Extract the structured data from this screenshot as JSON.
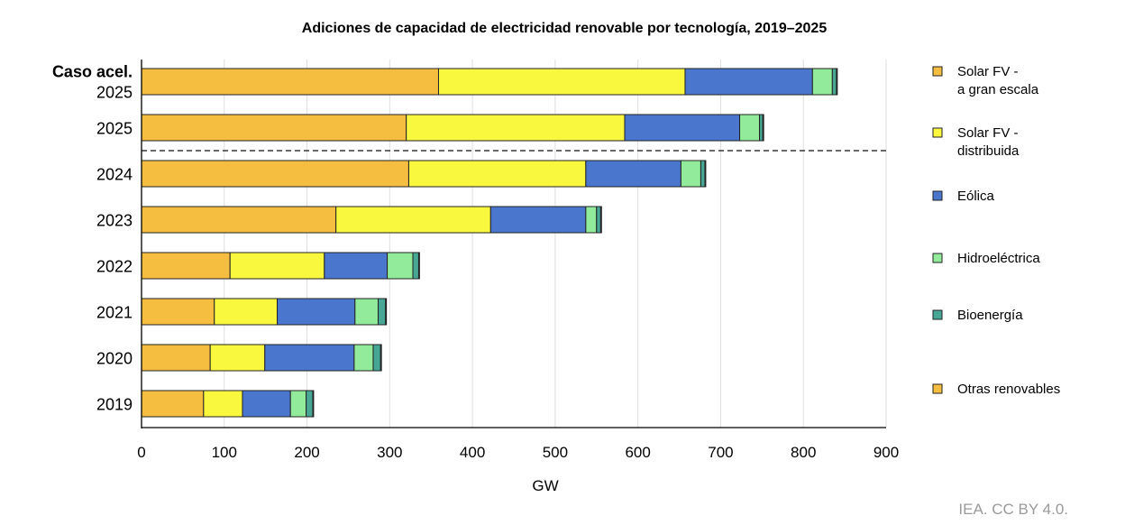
{
  "chart_data": {
    "type": "bar",
    "orientation": "horizontal",
    "stacked": true,
    "title": "Adiciones de capacidad de electricidad renovable por tecnología, 2019–2025",
    "xlabel": "GW",
    "ylabel": "",
    "xlim": [
      0,
      900
    ],
    "xticks": [
      0,
      100,
      200,
      300,
      400,
      500,
      600,
      700,
      800,
      900
    ],
    "grid": "vertical",
    "legend_position": "right",
    "categories": [
      {
        "label": "Caso acel.",
        "label2": "2025",
        "bold": true
      },
      {
        "label": "2025"
      },
      {
        "label": "2024"
      },
      {
        "label": "2023"
      },
      {
        "label": "2022"
      },
      {
        "label": "2021"
      },
      {
        "label": "2020"
      },
      {
        "label": "2019"
      }
    ],
    "series": [
      {
        "name": "Solar FV - a gran escala",
        "legend_lines": [
          "Solar FV -",
          "a gran escala"
        ],
        "color": "#F6BE41",
        "values": [
          359,
          320,
          323,
          235,
          107,
          88,
          83,
          75
        ]
      },
      {
        "name": "Solar FV - distribuida",
        "legend_lines": [
          "Solar FV -",
          "distribuida"
        ],
        "color": "#FAF83E",
        "values": [
          298,
          264,
          214,
          187,
          114,
          76,
          66,
          47
        ]
      },
      {
        "name": "Eólica",
        "legend_lines": [
          "Eólica"
        ],
        "color": "#4A76CE",
        "values": [
          154,
          139,
          115,
          115,
          76,
          94,
          108,
          58
        ]
      },
      {
        "name": "Hidroeléctrica",
        "legend_lines": [
          "Hidroeléctrica"
        ],
        "color": "#91EB9A",
        "values": [
          24,
          24,
          24,
          13,
          31,
          28,
          23,
          19
        ]
      },
      {
        "name": "Bioenergía",
        "legend_lines": [
          "Bioenergía"
        ],
        "color": "#47A694",
        "values": [
          5,
          4,
          5,
          5,
          7,
          9,
          9,
          8
        ]
      },
      {
        "name": "Otras renovables",
        "legend_lines": [
          "Otras renovables"
        ],
        "color": "#F6BE41",
        "values": [
          1,
          1,
          1,
          1,
          1,
          1,
          1,
          1
        ]
      }
    ],
    "separator_after_index": 1,
    "credit": "IEA. CC BY 4.0."
  }
}
